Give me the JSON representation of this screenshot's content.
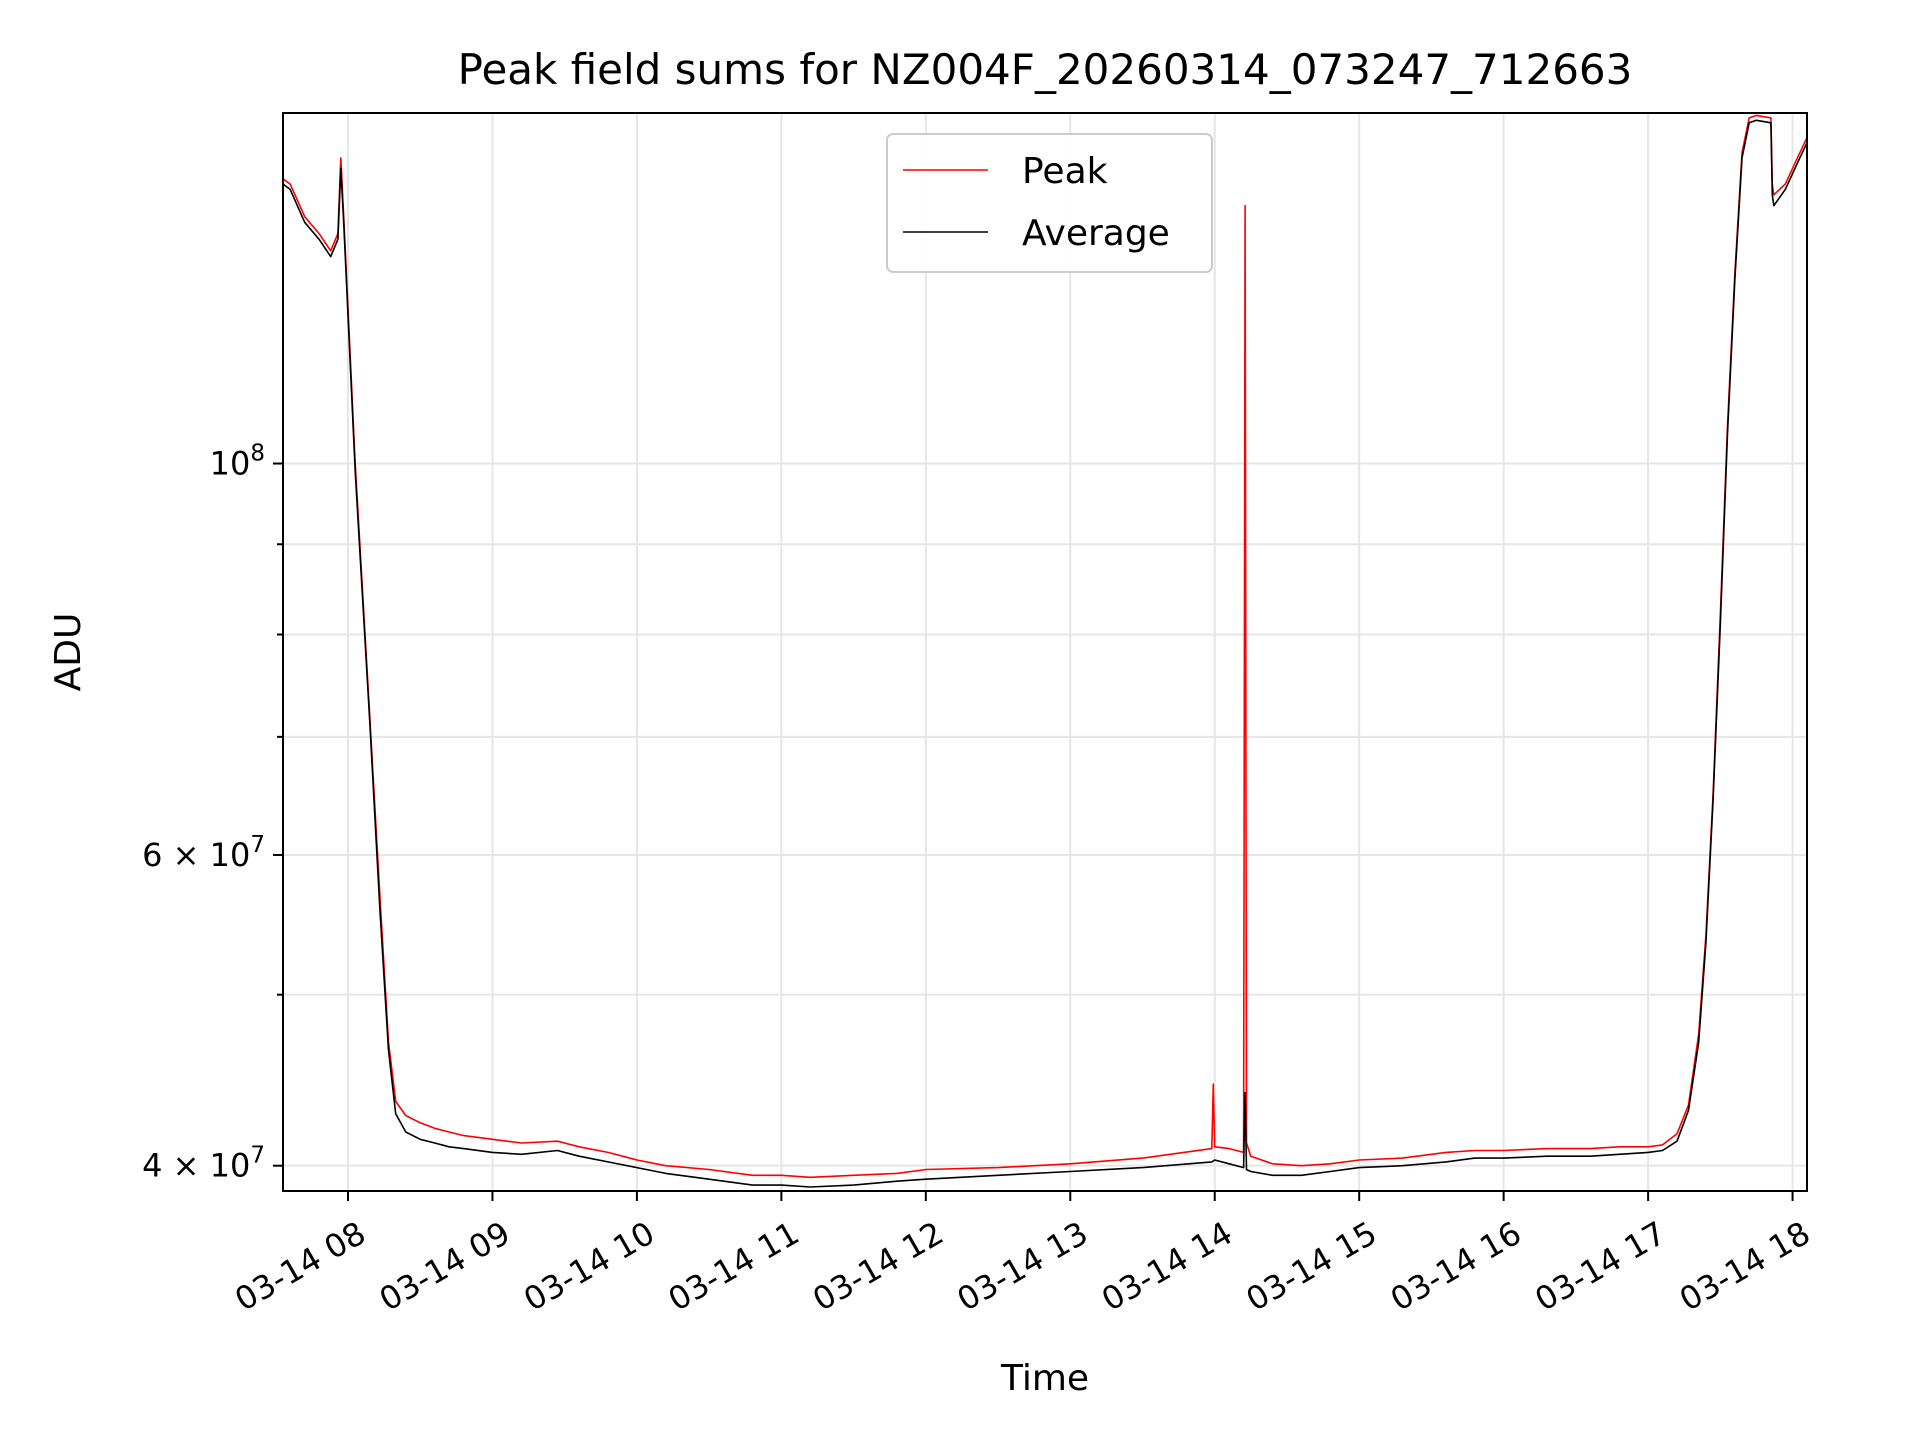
{
  "chart_data": {
    "type": "line",
    "title": "Peak field sums for NZ004F_20260314_073247_712663",
    "xlabel": "Time",
    "ylabel": "ADU",
    "yscale": "log",
    "xlim": [
      7.55,
      18.1
    ],
    "ylim": [
      38700000,
      158000000
    ],
    "grid": true,
    "legend_position": "top-center",
    "x_ticks": [
      {
        "value": 8,
        "label": "03-14 08"
      },
      {
        "value": 9,
        "label": "03-14 09"
      },
      {
        "value": 10,
        "label": "03-14 10"
      },
      {
        "value": 11,
        "label": "03-14 11"
      },
      {
        "value": 12,
        "label": "03-14 12"
      },
      {
        "value": 13,
        "label": "03-14 13"
      },
      {
        "value": 14,
        "label": "03-14 14"
      },
      {
        "value": 15,
        "label": "03-14 15"
      },
      {
        "value": 16,
        "label": "03-14 16"
      },
      {
        "value": 17,
        "label": "03-14 17"
      },
      {
        "value": 18,
        "label": "03-14 18"
      }
    ],
    "y_major_ticks": [
      {
        "value": 40000000,
        "base": "4 × 10",
        "exp": "7"
      },
      {
        "value": 60000000,
        "base": "6 × 10",
        "exp": "7"
      },
      {
        "value": 100000000,
        "base": "10",
        "exp": "8"
      }
    ],
    "y_minor_ticks": [
      50000000,
      70000000,
      80000000,
      90000000
    ],
    "series": [
      {
        "name": "Peak",
        "color": "#ff0000",
        "x": [
          7.55,
          7.6,
          7.7,
          7.8,
          7.88,
          7.93,
          7.95,
          7.97,
          8.05,
          8.15,
          8.22,
          8.28,
          8.33,
          8.4,
          8.5,
          8.6,
          8.7,
          8.8,
          9.0,
          9.2,
          9.45,
          9.6,
          9.8,
          10.0,
          10.2,
          10.5,
          10.8,
          11.0,
          11.2,
          11.5,
          11.8,
          12.0,
          12.5,
          13.0,
          13.5,
          13.98,
          13.99,
          14.0,
          14.1,
          14.2,
          14.21,
          14.22,
          14.25,
          14.4,
          14.6,
          14.8,
          15.0,
          15.3,
          15.6,
          15.8,
          16.0,
          16.3,
          16.6,
          16.8,
          17.0,
          17.1,
          17.2,
          17.28,
          17.35,
          17.4,
          17.45,
          17.5,
          17.55,
          17.6,
          17.65,
          17.7,
          17.75,
          17.85,
          17.86,
          17.87,
          17.95,
          18.0,
          18.05,
          18.1
        ],
        "values": [
          145000000,
          144000000,
          138000000,
          135000000,
          132000000,
          135000000,
          149000000,
          138000000,
          100000000,
          72000000,
          57000000,
          47000000,
          43500000,
          42700000,
          42300000,
          42000000,
          41800000,
          41600000,
          41400000,
          41200000,
          41300000,
          41000000,
          40700000,
          40300000,
          40000000,
          39800000,
          39500000,
          39500000,
          39400000,
          39500000,
          39600000,
          39800000,
          39900000,
          40100000,
          40400000,
          40900000,
          44500000,
          41000000,
          40900000,
          40700000,
          140000000,
          41200000,
          40500000,
          40100000,
          40000000,
          40100000,
          40300000,
          40400000,
          40700000,
          40800000,
          40800000,
          40900000,
          40900000,
          41000000,
          41000000,
          41100000,
          41700000,
          43300000,
          47500000,
          54000000,
          65000000,
          82000000,
          105000000,
          128000000,
          150000000,
          157000000,
          157500000,
          157000000,
          144000000,
          142000000,
          144000000,
          147000000,
          150000000,
          153000000
        ]
      },
      {
        "name": "Average",
        "color": "#000000",
        "x": [
          7.55,
          7.6,
          7.7,
          7.8,
          7.88,
          7.93,
          7.95,
          7.97,
          8.05,
          8.15,
          8.22,
          8.28,
          8.33,
          8.4,
          8.5,
          8.6,
          8.7,
          8.8,
          9.0,
          9.2,
          9.45,
          9.6,
          9.8,
          10.0,
          10.2,
          10.5,
          10.8,
          11.0,
          11.2,
          11.5,
          11.8,
          12.0,
          12.5,
          13.0,
          13.5,
          13.98,
          14.0,
          14.1,
          14.2,
          14.21,
          14.22,
          14.25,
          14.4,
          14.6,
          14.8,
          15.0,
          15.3,
          15.6,
          15.8,
          16.0,
          16.3,
          16.6,
          16.8,
          17.0,
          17.1,
          17.2,
          17.28,
          17.35,
          17.4,
          17.45,
          17.5,
          17.55,
          17.6,
          17.65,
          17.7,
          17.75,
          17.85,
          17.86,
          17.87,
          17.95,
          18.0,
          18.05,
          18.1
        ],
        "values": [
          144000000,
          143000000,
          137000000,
          134000000,
          131000000,
          134000000,
          147000000,
          137000000,
          99000000,
          71500000,
          56000000,
          46500000,
          42800000,
          41800000,
          41400000,
          41200000,
          41000000,
          40900000,
          40700000,
          40600000,
          40800000,
          40500000,
          40200000,
          39900000,
          39600000,
          39300000,
          39000000,
          39000000,
          38900000,
          39000000,
          39200000,
          39300000,
          39500000,
          39700000,
          39900000,
          40200000,
          40300000,
          40100000,
          39900000,
          44000000,
          39800000,
          39700000,
          39500000,
          39500000,
          39700000,
          39900000,
          40000000,
          40200000,
          40400000,
          40400000,
          40500000,
          40500000,
          40600000,
          40700000,
          40800000,
          41300000,
          43000000,
          47000000,
          53500000,
          64500000,
          81000000,
          104000000,
          127000000,
          149000000,
          156000000,
          156500000,
          156000000,
          142000000,
          140000000,
          143000000,
          146000000,
          149000000,
          152000000
        ]
      }
    ]
  }
}
